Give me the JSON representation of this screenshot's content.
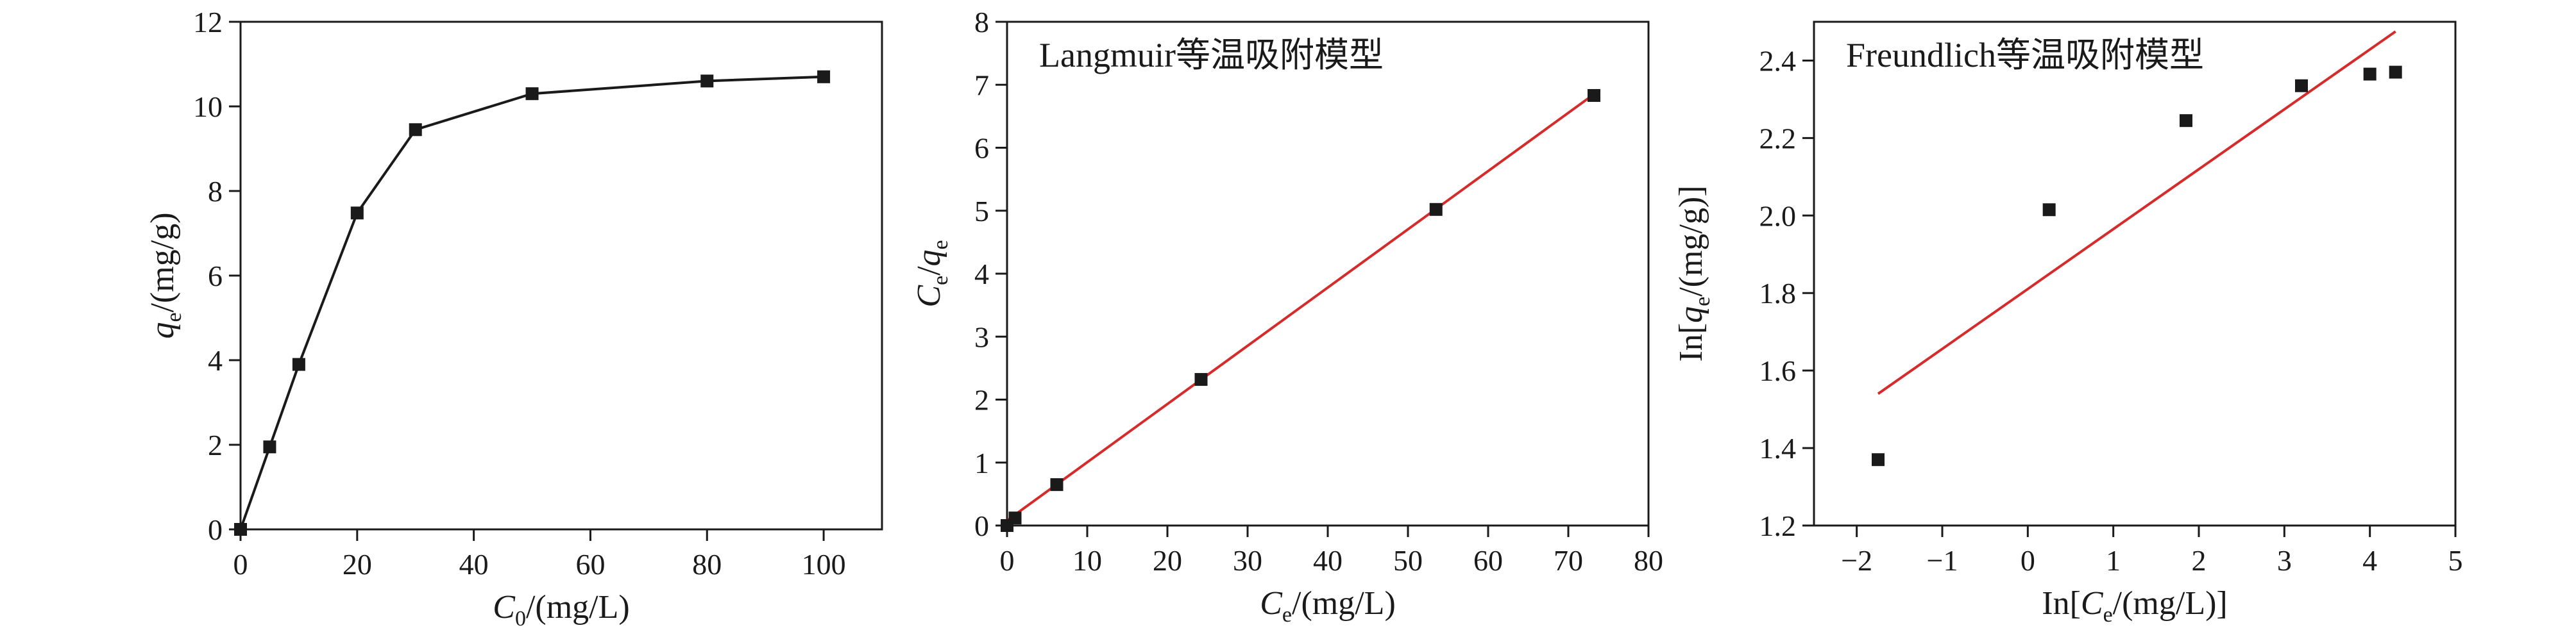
{
  "chart_data": [
    {
      "type": "line",
      "title": "",
      "xlabel": {
        "symbol": "C",
        "sub": "0",
        "unit": "/(mg/L)"
      },
      "ylabel": {
        "symbol": "q",
        "sub": "e",
        "unit": "/(mg/g)"
      },
      "xlim": [
        0,
        110
      ],
      "ylim": [
        0,
        12
      ],
      "xticks": [
        0,
        20,
        40,
        60,
        80,
        100
      ],
      "yticks": [
        0,
        2,
        4,
        6,
        8,
        10,
        12
      ],
      "points": [
        [
          0,
          0
        ],
        [
          5,
          1.95
        ],
        [
          10,
          3.9
        ],
        [
          20,
          7.48
        ],
        [
          30,
          9.45
        ],
        [
          50,
          10.3
        ],
        [
          80,
          10.6
        ],
        [
          100,
          10.7
        ]
      ],
      "fit_line": null,
      "line_color": "#1a1a1a",
      "marker_color": "#1a1a1a",
      "grid": false
    },
    {
      "type": "scatter",
      "title": "Langmuir等温吸附模型",
      "xlabel": {
        "symbol": "C",
        "sub": "e",
        "unit": "/(mg/L)"
      },
      "ylabel": {
        "symbol": "C",
        "sub": "e",
        "mid": "/q",
        "sub2": "e",
        "unit": ""
      },
      "xlim": [
        0,
        80
      ],
      "ylim": [
        0,
        8
      ],
      "xticks": [
        0,
        10,
        20,
        30,
        40,
        50,
        60,
        70,
        80
      ],
      "yticks": [
        0,
        1,
        2,
        3,
        4,
        5,
        6,
        7,
        8
      ],
      "points": [
        [
          0,
          0
        ],
        [
          1.0,
          0.12
        ],
        [
          6.2,
          0.65
        ],
        [
          24.2,
          2.32
        ],
        [
          53.5,
          5.02
        ],
        [
          73.2,
          6.83
        ]
      ],
      "fit_line": [
        [
          0,
          0.08
        ],
        [
          73.2,
          6.85
        ]
      ],
      "fit_color": "#d62b2b",
      "marker_color": "#1a1a1a",
      "grid": false
    },
    {
      "type": "scatter",
      "title": "Freundlich等温吸附模型",
      "xlabel": {
        "pre": "In[",
        "symbol": "C",
        "sub": "e",
        "unit": "/(mg/L)]"
      },
      "ylabel": {
        "pre": "In[",
        "symbol": "q",
        "sub": "e",
        "unit": "/(mg/g)]"
      },
      "xlim": [
        -2.5,
        5
      ],
      "ylim": [
        1.2,
        2.5
      ],
      "xticks": [
        -2,
        -1,
        0,
        1,
        2,
        3,
        4,
        5
      ],
      "yticks": [
        1.2,
        1.4,
        1.6,
        1.8,
        2.0,
        2.2,
        2.4
      ],
      "points": [
        [
          -1.75,
          1.37
        ],
        [
          0.25,
          2.015
        ],
        [
          1.85,
          2.245
        ],
        [
          3.2,
          2.335
        ],
        [
          4.0,
          2.365
        ],
        [
          4.3,
          2.37
        ]
      ],
      "fit_line": [
        [
          -1.75,
          1.54
        ],
        [
          4.3,
          2.475
        ]
      ],
      "fit_color": "#d62b2b",
      "marker_color": "#1a1a1a",
      "grid": false
    }
  ]
}
